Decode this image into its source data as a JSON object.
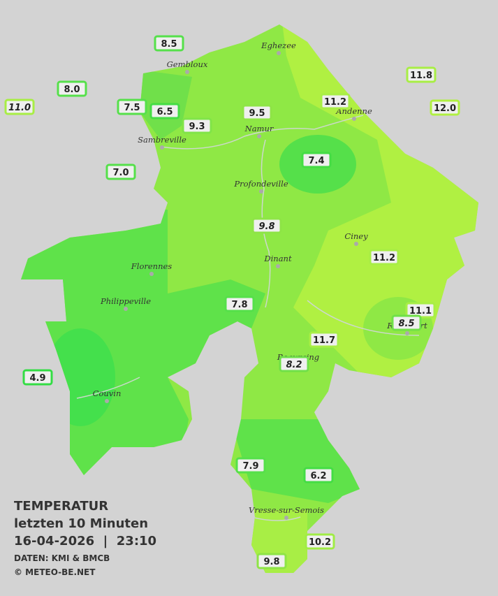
{
  "map": {
    "cities": [
      "Eghezee",
      "Gembloux",
      "Andenne",
      "Namur",
      "Sambreville",
      "Profondeville",
      "Ciney",
      "Dinant",
      "Florennes",
      "Philippeville",
      "Beauraing",
      "Rochefort",
      "Couvin",
      "Vresse-sur-Semois"
    ],
    "stations": [
      "8.5",
      "8.0",
      "11.0",
      "7.5",
      "6.5",
      "9.3",
      "9.5",
      "11.2",
      "11.8",
      "12.0",
      "7.4",
      "7.0",
      "9.8",
      "11.2",
      "7.8",
      "11.1",
      "8.5",
      "11.7",
      "8.2",
      "4.9",
      "7.9",
      "6.2",
      "10.2",
      "9.8"
    ]
  },
  "footer": {
    "title": "TEMPERATUR",
    "subtitle": "letzten 10 Minuten",
    "datetime": "16-04-2026  |  23:10",
    "source": "DATEN: KMI & BMCB",
    "copyright": "© METEO-BE.NET"
  }
}
